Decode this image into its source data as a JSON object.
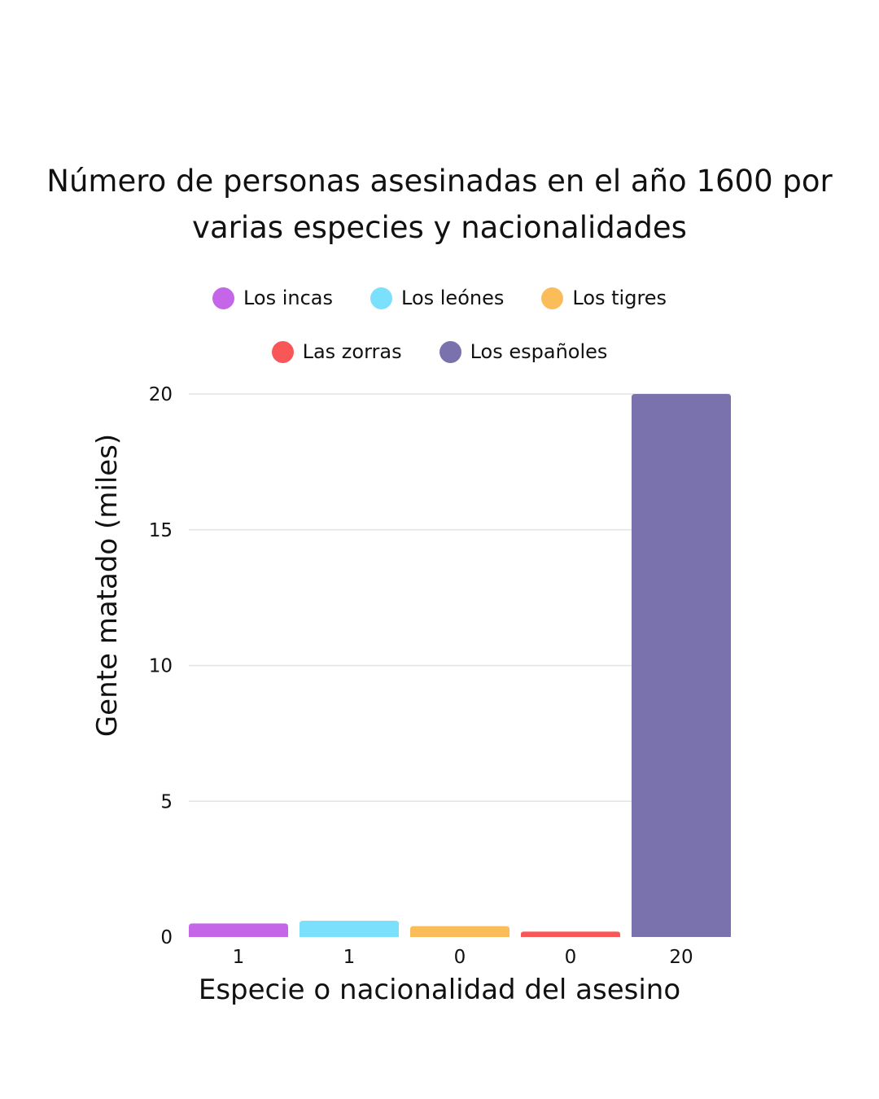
{
  "chart_data": {
    "type": "bar",
    "title": "Número de personas asesinadas en el año 1600 por varias especies y nacionalidades",
    "xlabel": "Especie o nacionalidad del asesino",
    "ylabel": "Gente matado (miles)",
    "ylim": [
      0,
      20
    ],
    "yticks": [
      0,
      5,
      10,
      15,
      20
    ],
    "grid": true,
    "legend_position": "top-center",
    "categories": [
      "Los incas",
      "Los leónes",
      "Los tigres",
      "Las zorras",
      "Los españoles"
    ],
    "values": [
      0.5,
      0.6,
      0.4,
      0.2,
      20
    ],
    "value_labels": [
      "1",
      "1",
      "0",
      "0",
      "20"
    ],
    "colors": [
      "#c566e8",
      "#7be0fb",
      "#fbbd5a",
      "#f95757",
      "#7a72ad"
    ]
  },
  "legend": {
    "row1": [
      {
        "label": "Los incas",
        "color": "#c566e8"
      },
      {
        "label": "Los leónes",
        "color": "#7be0fb"
      },
      {
        "label": "Los tigres",
        "color": "#fbbd5a"
      }
    ],
    "row2": [
      {
        "label": "Las zorras",
        "color": "#f95757"
      },
      {
        "label": "Los españoles",
        "color": "#7a72ad"
      }
    ]
  }
}
